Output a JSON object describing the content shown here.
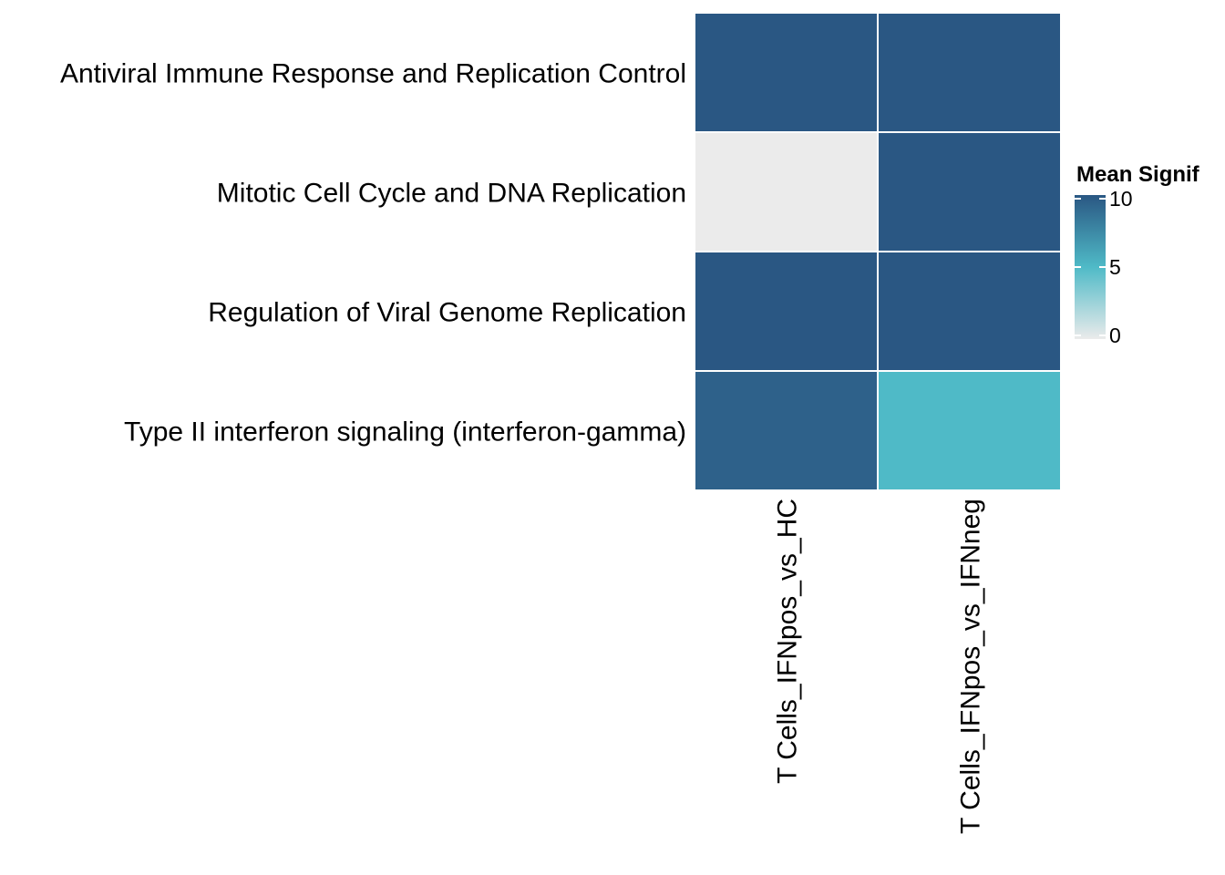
{
  "chart_data": {
    "type": "heatmap",
    "title": "",
    "xlabel": "",
    "ylabel": "",
    "rows": [
      "Antiviral Immune Response and Replication Control",
      "Mitotic Cell Cycle and DNA Replication",
      "Regulation of Viral Genome Replication",
      "Type II interferon signaling (interferon-gamma)"
    ],
    "columns": [
      "T Cells_IFNpos_vs_HC",
      "T Cells_IFNpos_vs_IFNneg"
    ],
    "values": [
      [
        10,
        10
      ],
      [
        0,
        10
      ],
      [
        10,
        10
      ],
      [
        9.5,
        5
      ]
    ],
    "legend": {
      "title": "Mean Signif",
      "ticks": [
        0,
        5,
        10
      ],
      "range": [
        0,
        10
      ],
      "position": "right"
    },
    "color_scale": {
      "low": "#ebebeb",
      "mid": "#4fbac7",
      "high": "#2a5783"
    },
    "grid": false
  }
}
